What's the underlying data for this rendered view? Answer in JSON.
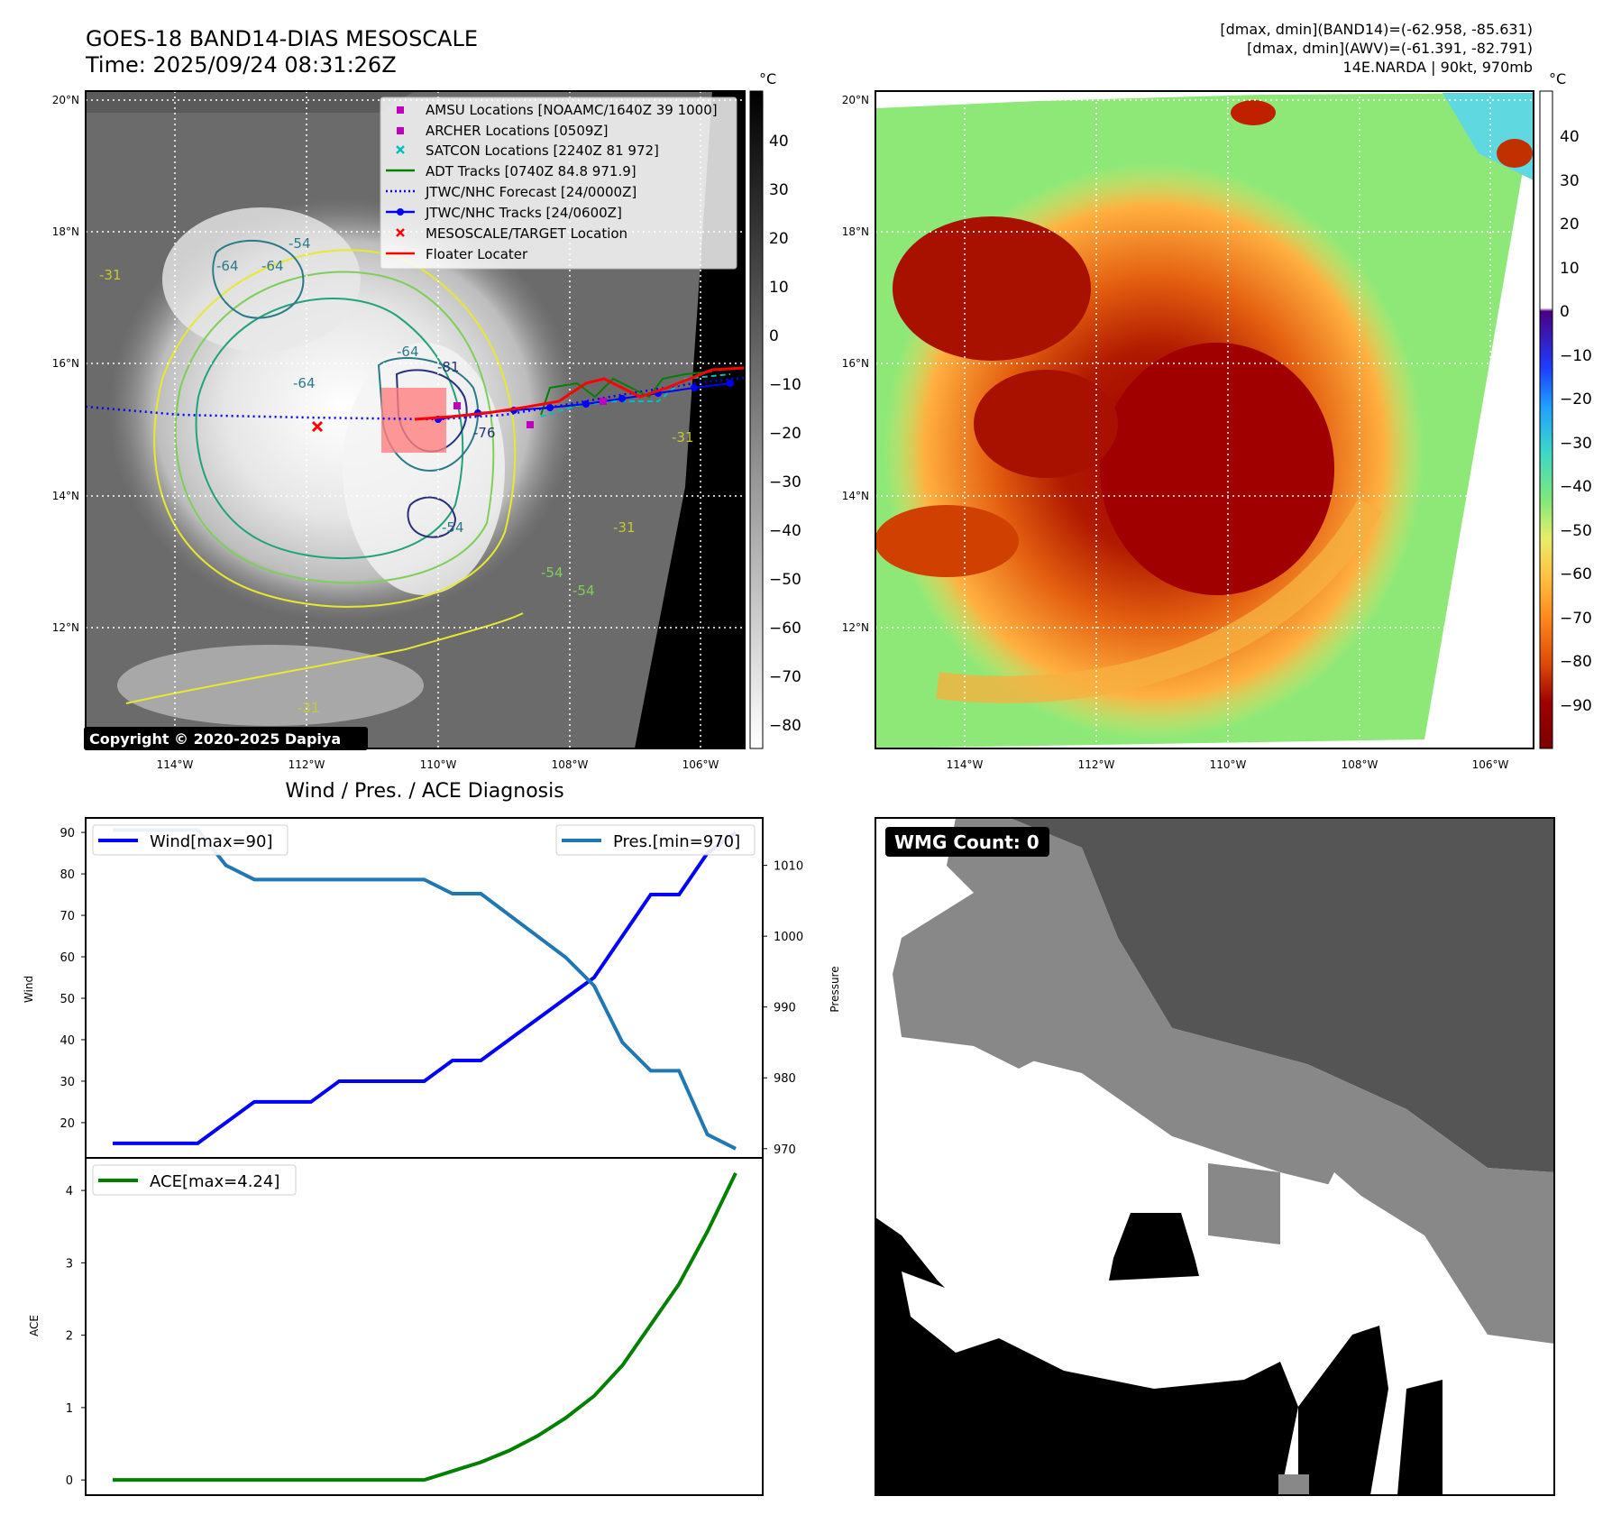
{
  "header": {
    "title_line1": "GOES-18 BAND14-DIAS MESOSCALE",
    "title_line2": "Time: 2025/09/24 08:31:26Z",
    "stats_line1": "[dmax, dmin](BAND14)=(-62.958, -85.631)",
    "stats_line2": "[dmax, dmin](AWV)=(-61.391, -82.791)",
    "stats_line3": "14E.NARDA | 90kt, 970mb"
  },
  "copyright": "Copyright © 2020-2025 Dapiya",
  "map_panels": {
    "lat_ticks": [
      "20°N",
      "18°N",
      "16°N",
      "14°N",
      "12°N"
    ],
    "lon_ticks": [
      "114°W",
      "112°W",
      "110°W",
      "108°W",
      "106°W"
    ],
    "lat_range": [
      10.0,
      20.1
    ],
    "lon_range": [
      -115.4,
      -105.35
    ],
    "colorbar_unit": "°C",
    "gray_colorbar_ticks": [
      "40",
      "30",
      "20",
      "10",
      "0",
      "−10",
      "−20",
      "−30",
      "−40",
      "−50",
      "−60",
      "−70",
      "−80"
    ],
    "color_colorbar_ticks": [
      "40",
      "30",
      "20",
      "10",
      "0",
      "−10",
      "−20",
      "−30",
      "−40",
      "−50",
      "−60",
      "−70",
      "−80",
      "−90"
    ],
    "contour_labels": [
      "-64",
      "-64",
      "-54",
      "-64",
      "-81",
      "-76",
      "-64",
      "-54",
      "-31",
      "-31",
      "-31",
      "-54",
      "-31",
      "-54"
    ]
  },
  "legend": {
    "items": [
      {
        "label": "AMSU Locations [NOAAMC/1640Z 39 1000]",
        "color": "#bf00bf",
        "marker": "square"
      },
      {
        "label": "ARCHER Locations [0509Z]",
        "color": "#bf00bf",
        "marker": "square"
      },
      {
        "label": "SATCON Locations [2240Z 81 972]",
        "color": "#00bfbf",
        "marker": "x"
      },
      {
        "label": "ADT Tracks [0740Z 84.8 971.9]",
        "color": "#008000",
        "marker": "line"
      },
      {
        "label": "JTWC/NHC Forecast [24/0000Z]",
        "color": "#0000ff",
        "marker": "dotted"
      },
      {
        "label": "JTWC/NHC Tracks [24/0600Z]",
        "color": "#0000ff",
        "marker": "line-dot"
      },
      {
        "label": "MESOSCALE/TARGET Location",
        "color": "#ff0000",
        "marker": "x"
      },
      {
        "label": "Floater Locater",
        "color": "#ff0000",
        "marker": "line"
      }
    ]
  },
  "diag_title": "Wind / Pres. / ACE Diagnosis",
  "wmg_label": "WMG Count: 0",
  "chart_data": [
    {
      "type": "line",
      "x": [
        0,
        1,
        2,
        3,
        4,
        5,
        6,
        7,
        8,
        9,
        10,
        11,
        12,
        13,
        14,
        15,
        16,
        17,
        18,
        19,
        20,
        21,
        22
      ],
      "series": [
        {
          "name": "Wind[max=90]",
          "axis": "left",
          "color": "#0000ff",
          "values": [
            15,
            15,
            15,
            15,
            20,
            25,
            25,
            25,
            30,
            30,
            30,
            30,
            35,
            35,
            40,
            45,
            50,
            55,
            65,
            75,
            75,
            85,
            90
          ]
        },
        {
          "name": "Pres.[min=970]",
          "axis": "right",
          "color": "#1f77b4",
          "values": [
            1015,
            1015,
            1015,
            1015,
            1010,
            1008,
            1008,
            1008,
            1008,
            1008,
            1008,
            1008,
            1006,
            1006,
            1003,
            1000,
            997,
            993,
            985,
            981,
            981,
            972,
            970
          ]
        }
      ],
      "ylabel": "Wind",
      "ylabel_right": "Pressure",
      "ylim": [
        11.5,
        93.5
      ],
      "ylim_right": [
        968.7,
        1016.7
      ],
      "yticks": [
        20,
        30,
        40,
        50,
        60,
        70,
        80,
        90
      ],
      "yticks_right": [
        970,
        980,
        990,
        1000,
        1010
      ],
      "legend": [
        "upper left",
        "upper right"
      ]
    },
    {
      "type": "line",
      "x": [
        0,
        1,
        2,
        3,
        4,
        5,
        6,
        7,
        8,
        9,
        10,
        11,
        12,
        13,
        14,
        15,
        16,
        17,
        18,
        19,
        20,
        21,
        22
      ],
      "series": [
        {
          "name": "ACE[max=4.24]",
          "color": "#008000",
          "values": [
            0,
            0,
            0,
            0,
            0,
            0,
            0,
            0,
            0,
            0,
            0,
            0,
            0.1225,
            0.245,
            0.405,
            0.6075,
            0.8575,
            1.16,
            1.5825,
            2.145,
            2.7075,
            3.43,
            4.24
          ]
        }
      ],
      "ylabel": "ACE",
      "ylim": [
        -0.21,
        4.45
      ],
      "yticks": [
        0,
        1,
        2,
        3,
        4
      ],
      "legend": "upper left"
    }
  ]
}
